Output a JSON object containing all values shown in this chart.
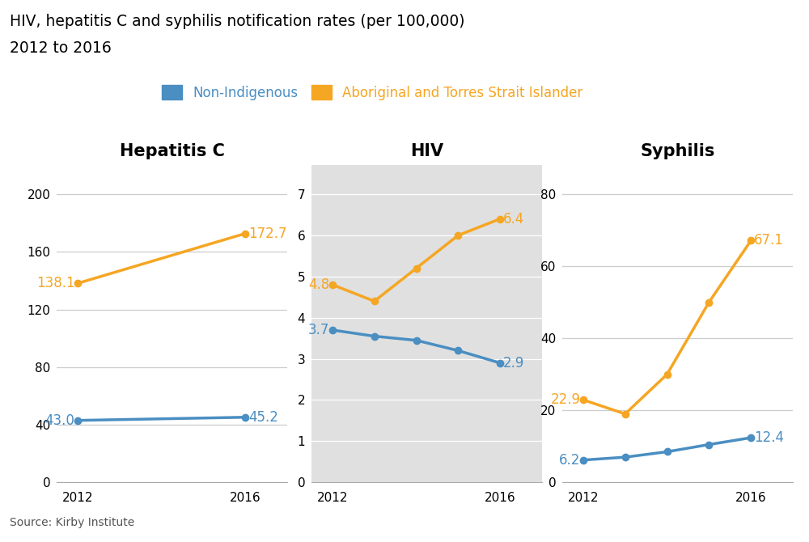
{
  "title_line1": "HIV, hepatitis C and syphilis notification rates (per 100,000)",
  "title_line2": "2012 to 2016",
  "source": "Source: Kirby Institute",
  "blue_color": "#4a8ec2",
  "orange_color": "#f5a623",
  "panel_bg_color": "#e0e0e0",
  "grid_color_white": "#ffffff",
  "grid_color_gray": "#cccccc",
  "legend_blue_label": "Non-Indigenous",
  "legend_orange_label": "Aboriginal and Torres Strait Islander",
  "subplots": [
    {
      "title": "Hepatitis C",
      "years": [
        2012,
        2016
      ],
      "blue_values": [
        43.0,
        45.2
      ],
      "orange_values": [
        138.1,
        172.7
      ],
      "ylim": [
        0,
        220
      ],
      "yticks": [
        0,
        40,
        80,
        120,
        160,
        200
      ],
      "blue_label_2012": "43.0",
      "blue_label_2016": "45.2",
      "orange_label_2012": "138.1",
      "orange_label_2016": "172.7",
      "panel_bg": false
    },
    {
      "title": "HIV",
      "years": [
        2012,
        2013,
        2014,
        2015,
        2016
      ],
      "blue_values": [
        3.7,
        3.55,
        3.45,
        3.2,
        2.9
      ],
      "orange_values": [
        4.8,
        4.4,
        5.2,
        6.0,
        6.4
      ],
      "ylim": [
        0,
        7.7
      ],
      "yticks": [
        0,
        1,
        2,
        3,
        4,
        5,
        6,
        7
      ],
      "blue_label_2012": "3.7",
      "blue_label_2016": "2.9",
      "orange_label_2012": "4.8",
      "orange_label_2016": "6.4",
      "panel_bg": true
    },
    {
      "title": "Syphilis",
      "years": [
        2012,
        2013,
        2014,
        2015,
        2016
      ],
      "blue_values": [
        6.2,
        7.0,
        8.5,
        10.5,
        12.4
      ],
      "orange_values": [
        22.9,
        19.0,
        30.0,
        50.0,
        67.1
      ],
      "ylim": [
        0,
        88
      ],
      "yticks": [
        0,
        20,
        40,
        60,
        80
      ],
      "blue_label_2012": "6.2",
      "blue_label_2016": "12.4",
      "orange_label_2012": "22.9",
      "orange_label_2016": "67.1",
      "panel_bg": false
    }
  ]
}
